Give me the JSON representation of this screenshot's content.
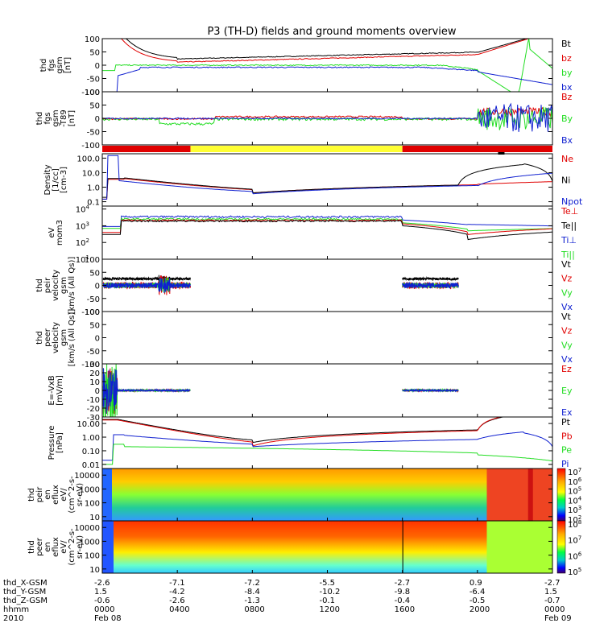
{
  "title": "P3 (TH-D) fields and ground moments overview",
  "colors": {
    "black": "#000000",
    "red": "#e00000",
    "green": "#22dd22",
    "blue": "#1020d0",
    "yellow": "#ffff33"
  },
  "chart_data": [
    {
      "id": "fgs",
      "type": "line",
      "ylabel": [
        "thd",
        "fgs",
        "gsm",
        "[nT]"
      ],
      "ylim": [
        -100,
        100
      ],
      "yticks": [
        "100",
        "50",
        "0",
        "-50",
        "-100"
      ],
      "legend": [
        {
          "name": "Bt",
          "color": "black"
        },
        {
          "name": "bz",
          "color": "red"
        },
        {
          "name": "by",
          "color": "green"
        },
        {
          "name": "bx",
          "color": "blue"
        }
      ]
    },
    {
      "id": "fgs_tm",
      "type": "line",
      "ylabel": [
        "thd",
        "fgs",
        "gsm",
        "-T89",
        "[nT]"
      ],
      "ylim": [
        -100,
        100
      ],
      "yticks": [
        "100",
        "50",
        "0",
        "-50",
        "-100"
      ],
      "legend": [
        {
          "name": "Bz",
          "color": "red"
        },
        {
          "name": "By",
          "color": "green"
        },
        {
          "name": "Bx",
          "color": "blue"
        }
      ]
    },
    {
      "id": "mode_bar",
      "type": "bar",
      "segments": [
        {
          "from": 0.0,
          "to": 4.7,
          "color": "red"
        },
        {
          "from": 4.7,
          "to": 16.0,
          "color": "yellow"
        },
        {
          "from": 16.0,
          "to": 24.0,
          "color": "red"
        }
      ]
    },
    {
      "id": "density",
      "type": "line",
      "ylabel": [
        "Density",
        "[1/cc]",
        "[cm-3]"
      ],
      "yscale": "log",
      "ylim": [
        0.05,
        200
      ],
      "yticks": [
        "100.0",
        "10.0",
        "1.0",
        "0.1"
      ],
      "legend": [
        {
          "name": "Ne",
          "color": "red"
        },
        {
          "name": "Ni",
          "color": "black"
        },
        {
          "name": "Npot",
          "color": "blue"
        }
      ]
    },
    {
      "id": "temperature",
      "type": "line",
      "ylabel": [
        "eV",
        "mom3"
      ],
      "yscale": "log",
      "ylim": [
        10,
        15000
      ],
      "yticks": [
        "10^4",
        "10^3",
        "10^2",
        "10^1"
      ],
      "legend": [
        {
          "name": "Te⊥",
          "color": "red"
        },
        {
          "name": "Te||",
          "color": "black"
        },
        {
          "name": "Ti⊥",
          "color": "blue"
        },
        {
          "name": "Ti||",
          "color": "green"
        }
      ]
    },
    {
      "id": "peir_velocity",
      "type": "line",
      "ylabel": [
        "thd",
        "peir",
        "velocity",
        "gsm",
        "[km/s (All Qs)]"
      ],
      "ylim": [
        -100,
        100
      ],
      "yticks": [
        "100",
        "50",
        "0",
        "-50",
        "-100"
      ],
      "legend": [
        {
          "name": "Vt",
          "color": "black"
        },
        {
          "name": "Vz",
          "color": "red"
        },
        {
          "name": "Vy",
          "color": "green"
        },
        {
          "name": "Vx",
          "color": "blue"
        }
      ]
    },
    {
      "id": "peer_velocity",
      "type": "line",
      "ylabel": [
        "thd",
        "peer",
        "velocity",
        "gsm",
        "[km/s (All Qs)]"
      ],
      "ylim": [
        -100,
        100
      ],
      "yticks": [
        "100",
        "50",
        "0",
        "-50",
        "-100"
      ],
      "legend": [
        {
          "name": "Vt",
          "color": "black"
        },
        {
          "name": "Vz",
          "color": "red"
        },
        {
          "name": "Vy",
          "color": "green"
        },
        {
          "name": "Vx",
          "color": "blue"
        }
      ]
    },
    {
      "id": "efield",
      "type": "line",
      "ylabel": [
        "E=-VxB",
        "[mV/m]"
      ],
      "ylim": [
        -30,
        30
      ],
      "yticks": [
        "30",
        "20",
        "10",
        "0",
        "-10",
        "-20",
        "-30"
      ],
      "legend": [
        {
          "name": "Ez",
          "color": "red"
        },
        {
          "name": "Ey",
          "color": "green"
        },
        {
          "name": "Ex",
          "color": "blue"
        }
      ]
    },
    {
      "id": "pressure",
      "type": "line",
      "ylabel": [
        "Pressure",
        "[nPa]"
      ],
      "yscale": "log",
      "ylim": [
        0.005,
        30
      ],
      "yticks": [
        "10.00",
        "1.00",
        "0.10",
        "0.01"
      ],
      "legend": [
        {
          "name": "Pt",
          "color": "black"
        },
        {
          "name": "Pb",
          "color": "red"
        },
        {
          "name": "Pe",
          "color": "green"
        },
        {
          "name": "Pi",
          "color": "blue"
        }
      ]
    },
    {
      "id": "peir_spec",
      "type": "heatmap",
      "ylabel": [
        "thd",
        "peir",
        "en",
        "eflux",
        "eV/",
        "(cm^2-s-",
        "sr-eV)"
      ],
      "yscale": "log",
      "ylim": [
        5,
        30000
      ],
      "yticks": [
        "10000",
        "1000",
        "100",
        "10"
      ],
      "colorbar": [
        "10^7",
        "10^6",
        "10^5",
        "10^4",
        "10^3",
        "10^2"
      ]
    },
    {
      "id": "peer_spec",
      "type": "heatmap",
      "ylabel": [
        "thd",
        "peer",
        "en",
        "eflux",
        "eV/",
        "(cm^2-s-",
        "sr-eV)"
      ],
      "yscale": "log",
      "ylim": [
        5,
        30000
      ],
      "yticks": [
        "10000",
        "1000",
        "100",
        "10"
      ],
      "colorbar": [
        "10^8",
        "10^7",
        "10^6",
        "10^5"
      ]
    }
  ],
  "xaxis": {
    "rows": [
      {
        "label": "thd_X-GSM",
        "values": [
          "-2.6",
          "-7.1",
          "-7.2",
          "-5.5",
          "-2.7",
          "0.9",
          "-2.7"
        ]
      },
      {
        "label": "thd_Y-GSM",
        "values": [
          "1.5",
          "-4.2",
          "-8.4",
          "-10.2",
          "-9.8",
          "-6.4",
          "1.5"
        ]
      },
      {
        "label": "thd_Z-GSM",
        "values": [
          "-0.6",
          "-2.6",
          "-1.3",
          "-0.1",
          "-0.4",
          "-0.5",
          "-0.7"
        ]
      },
      {
        "label": "hhmm",
        "values": [
          "0000",
          "0400",
          "0800",
          "1200",
          "1600",
          "2000",
          "0000"
        ]
      },
      {
        "label": "2010",
        "values": [
          "Feb 08",
          "",
          "",
          "",
          "",
          "",
          "Feb 09"
        ]
      }
    ],
    "hours": [
      0,
      4,
      8,
      12,
      16,
      20,
      24
    ]
  }
}
